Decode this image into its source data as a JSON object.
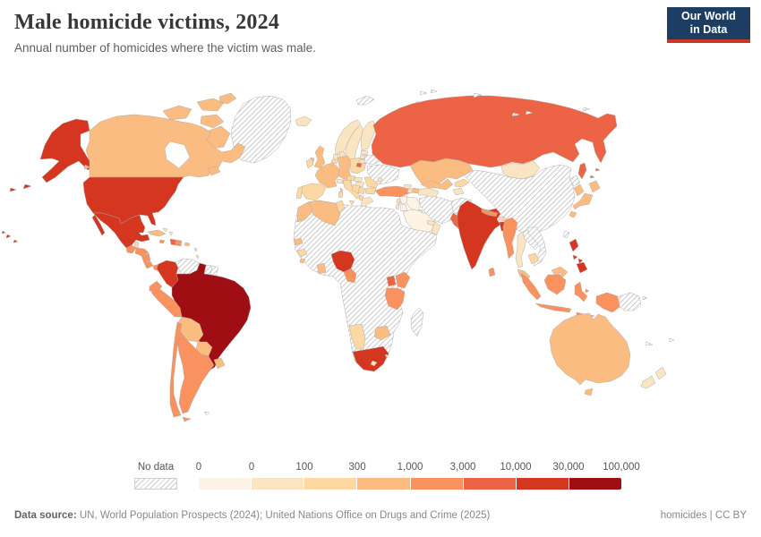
{
  "header": {
    "title": "Male homicide victims, 2024",
    "subtitle": "Annual number of homicides where the victim was male.",
    "logo": {
      "line1": "Our World",
      "line2": "in Data",
      "bg_color": "#1d3d63",
      "accent_color": "#cc3629"
    }
  },
  "footer": {
    "source_label": "Data source:",
    "source_text": " UN, World Population Prospects (2024); United Nations Office on Drugs and Crime (2025)",
    "right_text": "homicides | CC BY"
  },
  "chart_data": {
    "type": "heatmap",
    "subtype": "choropleth-world-map",
    "title": "Male homicide victims, 2024",
    "unit": "annual number of male homicide victims",
    "legend": {
      "no_data_label": "No data",
      "tick_labels": [
        "0",
        "0",
        "100",
        "300",
        "1,000",
        "3,000",
        "10,000",
        "30,000",
        "100,000"
      ],
      "bin_labels": [
        "0",
        "0–100",
        "100–300",
        "300–1,000",
        "1,000–3,000",
        "3,000–10,000",
        "10,000–30,000",
        "30,000–100,000"
      ],
      "bin_colors": [
        "#fdf3e4",
        "#fbe4c1",
        "#fcd8a2",
        "#fbbc82",
        "#f9925e",
        "#ec6345",
        "#d53620",
        "#9e0e12"
      ],
      "no_data_pattern": "diagonal-hatch"
    },
    "countries": {
      "united-states": 6,
      "canada": 3,
      "greenland": "no-data",
      "mexico": 6,
      "guatemala": 4,
      "belize": 2,
      "honduras": 4,
      "nicaragua": 4,
      "costa-rica": 4,
      "panama": 4,
      "cuba": 3,
      "jamaica": 4,
      "haiti": 5,
      "dominican-republic": 4,
      "puerto-rico": 3,
      "bahamas": 1,
      "trinidad-and-tobago": 4,
      "lesser-antilles": 2,
      "colombia": 6,
      "venezuela": "no-data",
      "guyana": 1,
      "suriname": "no-data",
      "french-guiana": "no-data",
      "ecuador": 4,
      "peru": 4,
      "brazil": 7,
      "bolivia": 3,
      "paraguay": 3,
      "chile": 4,
      "argentina": 4,
      "uruguay": 3,
      "falkland-islands": "no-data",
      "iceland": 1,
      "norway": 1,
      "sweden": 1,
      "finland": 1,
      "denmark": 1,
      "united-kingdom": 3,
      "ireland": 2,
      "netherlands": 1,
      "belgium": 2,
      "germany": 3,
      "france": 3,
      "spain": 2,
      "portugal": 2,
      "switzerland": 1,
      "austria": 1,
      "italy": 2,
      "czechia": 2,
      "poland": 2,
      "slovakia": 1,
      "hungary": 1,
      "croatia-bosnia": 2,
      "serbia": 2,
      "albania": 2,
      "greece": 1,
      "romania": 2,
      "bulgaria": 2,
      "baltic-states": 1,
      "moldova": 1,
      "belarus": "no-data",
      "ukraine": "no-data",
      "russia": 5,
      "turkey": 4,
      "cyprus": 1,
      "georgia": 1,
      "armenia": 1,
      "azerbaijan": 3,
      "syria": 0,
      "lebanon": 1,
      "israel": 1,
      "jordan": 0,
      "iraq": 0,
      "saudi-arabia": 0,
      "yemen": 1,
      "oman": 1,
      "kuwait": 1,
      "united-arab-emirates": 1,
      "iran": "no-data",
      "afghanistan": "no-data",
      "turkmenistan": 1,
      "uzbekistan": 3,
      "tajikistan": 1,
      "kyrgyzstan": 2,
      "kazakhstan": 3,
      "mongolia": 1,
      "china": "no-data",
      "north-korea": "no-data",
      "south-korea": 3,
      "japan": 3,
      "taiwan": "no-data",
      "india": 6,
      "pakistan": 5,
      "nepal": 4,
      "bhutan": 2,
      "bangladesh": 6,
      "sri-lanka": 4,
      "myanmar": 4,
      "thailand": 1,
      "laos": "no-data",
      "vietnam": "no-data",
      "cambodia": 2,
      "malaysia": 3,
      "singapore": 1,
      "brunei": 1,
      "indonesia": 4,
      "papua-new-guinea": "no-data",
      "philippines": 6,
      "australia": 3,
      "new-zealand": 1,
      "new-caledonia": "no-data",
      "fiji": "no-data",
      "morocco": 3,
      "algeria": 3,
      "tunisia": 2,
      "senegal": 3,
      "guinea": 2,
      "sierra-leone": 3,
      "ghana": 3,
      "nigeria": 6,
      "cameroon": 4,
      "uganda": 5,
      "kenya": 4,
      "tanzania": 4,
      "zimbabwe": 3,
      "namibia": 2,
      "south-africa": 6,
      "lesotho": 1,
      "eswatini": 1,
      "madagascar": "no-data",
      "africa-other": "no-data",
      "svalbard": "no-data",
      "novaya-zemlya": "no-data",
      "franz-josef-land": "no-data",
      "arctic-islands-siberia": "no-data"
    }
  }
}
